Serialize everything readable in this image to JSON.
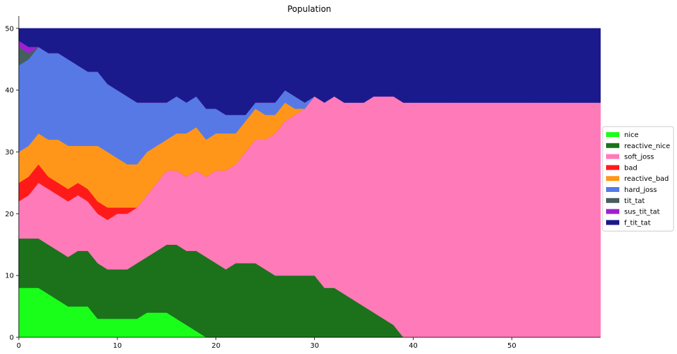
{
  "chart_data": {
    "type": "area",
    "stacked": true,
    "title": "Population",
    "xlabel": "",
    "ylabel": "",
    "xlim": [
      0,
      59
    ],
    "ylim": [
      0,
      52
    ],
    "xticks": [
      0,
      10,
      20,
      30,
      40,
      50
    ],
    "yticks": [
      0,
      10,
      20,
      30,
      40,
      50
    ],
    "grid": false,
    "legend_position": "right",
    "x": [
      0,
      1,
      2,
      3,
      4,
      5,
      6,
      7,
      8,
      9,
      10,
      11,
      12,
      13,
      14,
      15,
      16,
      17,
      18,
      19,
      20,
      21,
      22,
      23,
      24,
      25,
      26,
      27,
      28,
      29,
      30,
      31,
      32,
      33,
      34,
      35,
      36,
      37,
      38,
      39,
      40,
      41,
      42,
      43,
      44,
      45,
      46,
      47,
      48,
      49,
      50,
      51,
      52,
      53,
      54,
      55,
      56,
      57,
      58,
      59
    ],
    "series": [
      {
        "name": "nice",
        "color": "#1aff1a",
        "values": [
          8,
          8,
          8,
          7,
          6,
          5,
          5,
          5,
          3,
          3,
          3,
          3,
          3,
          4,
          4,
          4,
          3,
          2,
          1,
          0,
          0,
          0,
          0,
          0,
          0,
          0,
          0,
          0,
          0,
          0,
          0,
          0,
          0,
          0,
          0,
          0,
          0,
          0,
          0,
          0,
          0,
          0,
          0,
          0,
          0,
          0,
          0,
          0,
          0,
          0,
          0,
          0,
          0,
          0,
          0,
          0,
          0,
          0,
          0,
          0
        ]
      },
      {
        "name": "reactive_nice",
        "color": "#1b721b",
        "values": [
          8,
          8,
          8,
          8,
          8,
          8,
          9,
          9,
          9,
          8,
          8,
          8,
          9,
          9,
          10,
          11,
          12,
          12,
          13,
          13,
          12,
          11,
          12,
          12,
          12,
          11,
          10,
          10,
          10,
          10,
          10,
          8,
          8,
          7,
          6,
          5,
          4,
          3,
          2,
          0,
          0,
          0,
          0,
          0,
          0,
          0,
          0,
          0,
          0,
          0,
          0,
          0,
          0,
          0,
          0,
          0,
          0,
          0,
          0,
          0
        ]
      },
      {
        "name": "soft_joss",
        "color": "#ff7ab8",
        "values": [
          6,
          7,
          9,
          9,
          9,
          9,
          9,
          8,
          8,
          8,
          9,
          9,
          9,
          10,
          11,
          12,
          12,
          12,
          13,
          13,
          15,
          16,
          16,
          18,
          20,
          21,
          23,
          25,
          26,
          27,
          29,
          30,
          31,
          31,
          32,
          33,
          35,
          36,
          37,
          38,
          38,
          38,
          38,
          38,
          38,
          38,
          38,
          38,
          38,
          38,
          38,
          38,
          38,
          38,
          38,
          38,
          38,
          38,
          38,
          38
        ]
      },
      {
        "name": "bad",
        "color": "#ff1a1a",
        "values": [
          3,
          3,
          3,
          2,
          2,
          2,
          2,
          2,
          2,
          2,
          1,
          1,
          0,
          0,
          0,
          0,
          0,
          0,
          0,
          0,
          0,
          0,
          0,
          0,
          0,
          0,
          0,
          0,
          0,
          0,
          0,
          0,
          0,
          0,
          0,
          0,
          0,
          0,
          0,
          0,
          0,
          0,
          0,
          0,
          0,
          0,
          0,
          0,
          0,
          0,
          0,
          0,
          0,
          0,
          0,
          0,
          0,
          0,
          0,
          0
        ]
      },
      {
        "name": "reactive_bad",
        "color": "#ff9619",
        "values": [
          5,
          5,
          5,
          6,
          7,
          7,
          6,
          7,
          9,
          9,
          8,
          7,
          7,
          7,
          6,
          5,
          6,
          7,
          7,
          6,
          6,
          6,
          5,
          5,
          5,
          4,
          3,
          3,
          1,
          0,
          0,
          0,
          0,
          0,
          0,
          0,
          0,
          0,
          0,
          0,
          0,
          0,
          0,
          0,
          0,
          0,
          0,
          0,
          0,
          0,
          0,
          0,
          0,
          0,
          0,
          0,
          0,
          0,
          0,
          0
        ]
      },
      {
        "name": "hard_joss",
        "color": "#5679e6",
        "values": [
          14,
          14,
          14,
          14,
          14,
          14,
          13,
          12,
          12,
          11,
          11,
          11,
          10,
          8,
          7,
          6,
          6,
          5,
          5,
          5,
          4,
          3,
          3,
          1,
          1,
          2,
          2,
          2,
          2,
          1,
          0,
          0,
          0,
          0,
          0,
          0,
          0,
          0,
          0,
          0,
          0,
          0,
          0,
          0,
          0,
          0,
          0,
          0,
          0,
          0,
          0,
          0,
          0,
          0,
          0,
          0,
          0,
          0,
          0,
          0
        ]
      },
      {
        "name": "tit_tat",
        "color": "#455f60",
        "values": [
          3,
          1,
          0,
          0,
          0,
          0,
          0,
          0,
          0,
          0,
          0,
          0,
          0,
          0,
          0,
          0,
          0,
          0,
          0,
          0,
          0,
          0,
          0,
          0,
          0,
          0,
          0,
          0,
          0,
          0,
          0,
          0,
          0,
          0,
          0,
          0,
          0,
          0,
          0,
          0,
          0,
          0,
          0,
          0,
          0,
          0,
          0,
          0,
          0,
          0,
          0,
          0,
          0,
          0,
          0,
          0,
          0,
          0,
          0,
          0
        ]
      },
      {
        "name": "sus_tit_tat",
        "color": "#a020d0",
        "values": [
          1,
          1,
          0,
          0,
          0,
          0,
          0,
          0,
          0,
          0,
          0,
          0,
          0,
          0,
          0,
          0,
          0,
          0,
          0,
          0,
          0,
          0,
          0,
          0,
          0,
          0,
          0,
          0,
          0,
          0,
          0,
          0,
          0,
          0,
          0,
          0,
          0,
          0,
          0,
          0,
          0,
          0,
          0,
          0,
          0,
          0,
          0,
          0,
          0,
          0,
          0,
          0,
          0,
          0,
          0,
          0,
          0,
          0,
          0,
          0
        ]
      },
      {
        "name": "f_tit_tat",
        "color": "#1a1a8c",
        "values": [
          2,
          3,
          3,
          4,
          4,
          5,
          6,
          7,
          7,
          9,
          10,
          11,
          12,
          12,
          12,
          12,
          11,
          12,
          11,
          13,
          13,
          14,
          14,
          14,
          12,
          12,
          12,
          10,
          11,
          12,
          11,
          12,
          11,
          12,
          12,
          12,
          11,
          11,
          11,
          12,
          12,
          12,
          12,
          12,
          12,
          12,
          12,
          12,
          12,
          12,
          12,
          12,
          12,
          12,
          12,
          12,
          12,
          12,
          12,
          12
        ]
      }
    ]
  }
}
